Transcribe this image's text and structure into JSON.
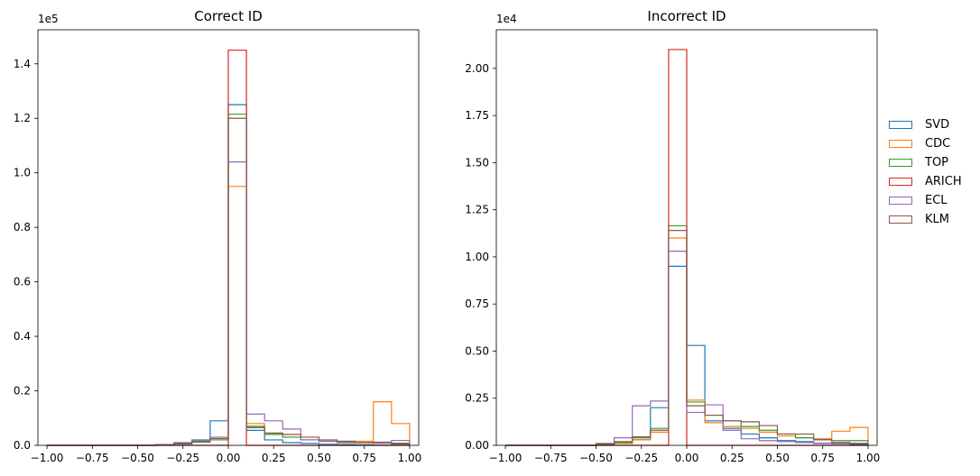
{
  "chart_data": [
    {
      "type": "histogram",
      "title": "Correct ID",
      "multiplier_label": "1e5",
      "multiplier": 100000,
      "xlim": [
        -1.05,
        1.05
      ],
      "ylim": [
        0,
        152500
      ],
      "xticks": [
        -1.0,
        -0.75,
        -0.5,
        -0.25,
        0.0,
        0.25,
        0.5,
        0.75,
        1.0
      ],
      "xtick_labels": [
        "−1.00",
        "−0.75",
        "−0.50",
        "−0.25",
        "0.00",
        "0.25",
        "0.50",
        "0.75",
        "1.00"
      ],
      "yticks": [
        0,
        20000,
        40000,
        60000,
        80000,
        100000,
        120000,
        140000
      ],
      "ytick_labels": [
        "0.0",
        "0.2",
        "0.4",
        "0.6",
        "0.8",
        "1.0",
        "1.2",
        "1.4"
      ],
      "bin_edges": [
        -1.0,
        -0.9,
        -0.8,
        -0.7,
        -0.6,
        -0.5,
        -0.4,
        -0.3,
        -0.2,
        -0.1,
        0.0,
        0.1,
        0.2,
        0.3,
        0.4,
        0.5,
        0.6,
        0.7,
        0.8,
        0.9,
        1.0
      ],
      "series": [
        {
          "name": "SVD",
          "color": "#1f77b4",
          "values": [
            0,
            0,
            0,
            0,
            0,
            0,
            100,
            500,
            2000,
            9000,
            125000,
            5500,
            2000,
            1000,
            700,
            400,
            300,
            200,
            100,
            50
          ]
        },
        {
          "name": "CDC",
          "color": "#ff7f0e",
          "values": [
            0,
            0,
            0,
            0,
            0,
            0,
            200,
            800,
            1500,
            2000,
            95000,
            8000,
            4000,
            3000,
            2000,
            1500,
            1500,
            1500,
            16000,
            8000
          ]
        },
        {
          "name": "TOP",
          "color": "#2ca02c",
          "values": [
            0,
            0,
            0,
            0,
            0,
            0,
            150,
            600,
            1200,
            2000,
            121500,
            7000,
            4000,
            3000,
            2000,
            1500,
            1000,
            1000,
            1000,
            800
          ]
        },
        {
          "name": "ARICH",
          "color": "#d62728",
          "values": [
            0,
            0,
            0,
            0,
            0,
            0,
            0,
            0,
            0,
            0,
            145000,
            0,
            0,
            0,
            0,
            0,
            0,
            0,
            0,
            0
          ]
        },
        {
          "name": "ECL",
          "color": "#9467bd",
          "values": [
            0,
            0,
            0,
            0,
            0,
            0,
            300,
            1000,
            1500,
            3000,
            104000,
            11500,
            9000,
            6000,
            2000,
            1500,
            1200,
            1000,
            1200,
            1800
          ]
        },
        {
          "name": "KLM",
          "color": "#8c564b",
          "values": [
            0,
            0,
            0,
            0,
            0,
            0,
            200,
            800,
            1500,
            2500,
            120000,
            6500,
            4500,
            4000,
            3000,
            2000,
            1500,
            1000,
            800,
            500
          ]
        }
      ]
    },
    {
      "type": "histogram",
      "title": "Incorrect ID",
      "multiplier_label": "1e4",
      "multiplier": 10000,
      "xlim": [
        -1.05,
        1.05
      ],
      "ylim": [
        0,
        22050
      ],
      "xticks": [
        -1.0,
        -0.75,
        -0.5,
        -0.25,
        0.0,
        0.25,
        0.5,
        0.75,
        1.0
      ],
      "xtick_labels": [
        "−1.00",
        "−0.75",
        "−0.50",
        "−0.25",
        "0.00",
        "0.25",
        "0.50",
        "0.75",
        "1.00"
      ],
      "yticks": [
        0,
        2500,
        5000,
        7500,
        10000,
        12500,
        15000,
        17500,
        20000
      ],
      "ytick_labels": [
        "0.00",
        "0.25",
        "0.50",
        "0.75",
        "1.00",
        "1.25",
        "1.50",
        "1.75",
        "2.00"
      ],
      "bin_edges": [
        -1.0,
        -0.9,
        -0.8,
        -0.7,
        -0.6,
        -0.5,
        -0.4,
        -0.3,
        -0.2,
        -0.1,
        0.0,
        0.1,
        0.2,
        0.3,
        0.4,
        0.5,
        0.6,
        0.7,
        0.8,
        0.9,
        1.0
      ],
      "series": [
        {
          "name": "SVD",
          "color": "#1f77b4",
          "values": [
            0,
            0,
            0,
            0,
            0,
            50,
            100,
            300,
            2000,
            9500,
            5300,
            1300,
            900,
            600,
            400,
            250,
            200,
            100,
            80,
            50
          ]
        },
        {
          "name": "CDC",
          "color": "#ff7f0e",
          "values": [
            0,
            0,
            0,
            0,
            0,
            50,
            100,
            300,
            700,
            11000,
            2400,
            1200,
            1000,
            900,
            700,
            500,
            400,
            350,
            750,
            950
          ]
        },
        {
          "name": "TOP",
          "color": "#2ca02c",
          "values": [
            0,
            0,
            0,
            0,
            0,
            50,
            150,
            400,
            900,
            11650,
            2300,
            1600,
            1300,
            1000,
            800,
            600,
            400,
            300,
            250,
            250
          ]
        },
        {
          "name": "ARICH",
          "color": "#d62728",
          "values": [
            0,
            0,
            0,
            0,
            0,
            0,
            0,
            0,
            0,
            21000,
            0,
            0,
            0,
            0,
            0,
            0,
            0,
            0,
            0,
            0
          ]
        },
        {
          "name": "ECL",
          "color": "#9467bd",
          "values": [
            0,
            0,
            0,
            0,
            0,
            100,
            400,
            2100,
            2350,
            10300,
            1750,
            2150,
            800,
            350,
            250,
            200,
            150,
            120,
            100,
            100
          ]
        },
        {
          "name": "KLM",
          "color": "#8c564b",
          "values": [
            0,
            0,
            0,
            0,
            0,
            80,
            200,
            450,
            800,
            11400,
            2100,
            1600,
            1300,
            1250,
            1050,
            600,
            600,
            300,
            150,
            100
          ]
        }
      ]
    }
  ],
  "legend": [
    {
      "name": "SVD",
      "color": "#1f77b4"
    },
    {
      "name": "CDC",
      "color": "#ff7f0e"
    },
    {
      "name": "TOP",
      "color": "#2ca02c"
    },
    {
      "name": "ARICH",
      "color": "#d62728"
    },
    {
      "name": "ECL",
      "color": "#9467bd"
    },
    {
      "name": "KLM",
      "color": "#8c564b"
    }
  ]
}
